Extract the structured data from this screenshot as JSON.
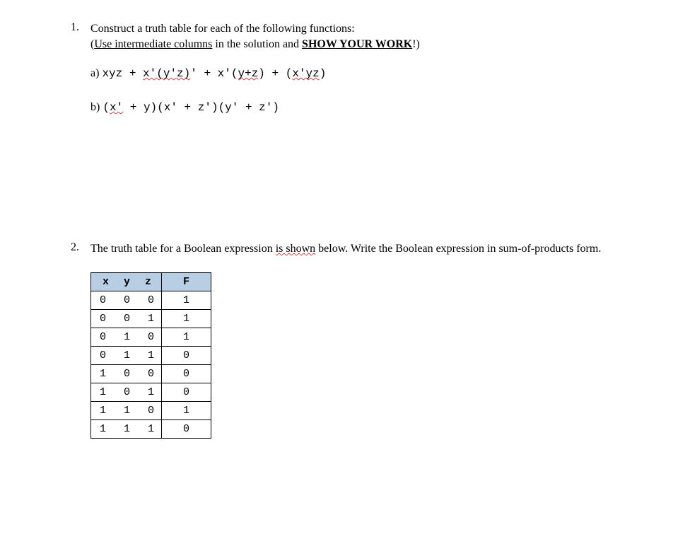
{
  "q1": {
    "number": "1.",
    "instr1": "Construct a truth table for each of the following functions:",
    "instr2_pre": "(",
    "instr2_under": "Use intermediate columns",
    "instr2_mid": " in the solution and ",
    "instr2_bold": "SHOW YOUR WORK",
    "instr2_post": "!)",
    "parta": {
      "label": "a) ",
      "t1": "xyz + ",
      "w1": "x'(y'z)",
      "t2": "' + x'(",
      "w2": "y+z",
      "t3": ") + (",
      "w3": "x'yz",
      "t4": ")"
    },
    "partb": {
      "label": "b) ",
      "t1": "(",
      "w1": "x'",
      "t2": " + y)(x' + z')(y' + z')"
    }
  },
  "q2": {
    "number": "2.",
    "instr_pre": "The truth table for a Boolean expression ",
    "instr_wavy": "is shown",
    "instr_post": " below. Write the Boolean expression in sum-of-products form.",
    "table": {
      "header_xyz": "x y z",
      "header_f": "F",
      "rows": [
        {
          "xyz": "0 0 0",
          "f": "1"
        },
        {
          "xyz": "0 0 1",
          "f": "1"
        },
        {
          "xyz": "0 1 0",
          "f": "1"
        },
        {
          "xyz": "0 1 1",
          "f": "0"
        },
        {
          "xyz": "1 0 0",
          "f": "0"
        },
        {
          "xyz": "1 0 1",
          "f": "0"
        },
        {
          "xyz": "1 1 0",
          "f": "1"
        },
        {
          "xyz": "1 1 1",
          "f": "0"
        }
      ]
    }
  },
  "styles": {
    "body_font": "Georgia",
    "mono_font": "Courier New",
    "font_size": 16,
    "wavy_color": "#d04040",
    "th_bg": "#b8cee4",
    "border_color": "#000000",
    "text_color": "#000000",
    "bg_color": "#ffffff"
  }
}
